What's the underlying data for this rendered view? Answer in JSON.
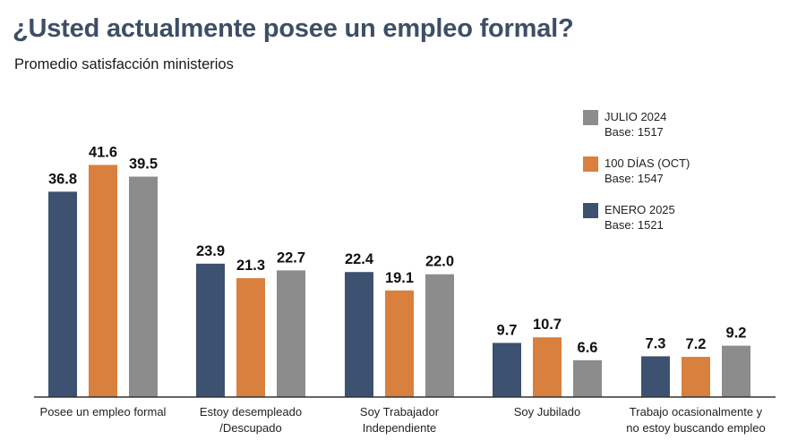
{
  "header": {
    "title": "¿Usted actualmente posee un empleo formal?",
    "subtitle": "Promedio satisfacción ministerios"
  },
  "colors": {
    "enero_2025": "#3d5170",
    "dias_100": "#d9803e",
    "julio_2024": "#8c8c8c",
    "axis": "#333333",
    "title": "#3d4f66"
  },
  "legend": {
    "items": [
      {
        "name": "JULIO 2024",
        "base": "Base: 1517",
        "series": "julio_2024"
      },
      {
        "name": "100 DÍAS (OCT)",
        "base": "Base: 1547",
        "series": "dias_100"
      },
      {
        "name": "ENERO 2025",
        "base": "Base: 1521",
        "series": "enero_2025"
      }
    ]
  },
  "chart_data": {
    "type": "bar",
    "title": "¿Usted actualmente posee un empleo formal?",
    "subtitle": "Promedio satisfacción ministerios",
    "xlabel": "",
    "ylabel": "",
    "ylim": [
      0,
      45
    ],
    "grid": false,
    "legend_position": "top-right",
    "categories": [
      [
        "Posee un empleo formal"
      ],
      [
        "Estoy desempleado",
        "/Descupado"
      ],
      [
        "Soy Trabajador",
        "Independiente"
      ],
      [
        "Soy Jubilado"
      ],
      [
        "Trabajo ocasionalmente y",
        "no estoy buscando empleo"
      ]
    ],
    "series": [
      {
        "name": "ENERO 2025",
        "key": "enero_2025",
        "values": [
          36.8,
          23.9,
          22.4,
          9.7,
          7.3
        ]
      },
      {
        "name": "100 DÍAS (OCT)",
        "key": "dias_100",
        "values": [
          41.6,
          21.3,
          19.1,
          10.7,
          7.2
        ]
      },
      {
        "name": "JULIO 2024",
        "key": "julio_2024",
        "values": [
          39.5,
          22.7,
          22.0,
          6.6,
          9.2
        ]
      }
    ]
  }
}
